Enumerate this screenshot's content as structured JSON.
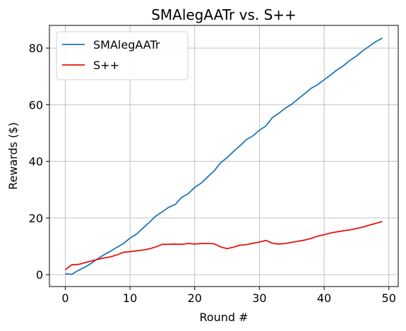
{
  "chart_data": {
    "type": "line",
    "title": "SMAlegAATr vs. S++",
    "xlabel": "Round #",
    "ylabel": "Rewards ($)",
    "xlim": [
      -2.45,
      51.45
    ],
    "ylim": [
      -4.2,
      88.0
    ],
    "xticks": [
      0,
      10,
      20,
      30,
      40,
      50
    ],
    "yticks": [
      0,
      20,
      40,
      60,
      80
    ],
    "grid": true,
    "legend_position": "top-left",
    "x": [
      0,
      1,
      2,
      3,
      4,
      5,
      6,
      7,
      8,
      9,
      10,
      11,
      12,
      13,
      14,
      15,
      16,
      17,
      18,
      19,
      20,
      21,
      22,
      23,
      24,
      25,
      26,
      27,
      28,
      29,
      30,
      31,
      32,
      33,
      34,
      35,
      36,
      37,
      38,
      39,
      40,
      41,
      42,
      43,
      44,
      45,
      46,
      47,
      48,
      49
    ],
    "series": [
      {
        "name": "SMAlegAATr",
        "color": "#1f77b4",
        "values": [
          0.3,
          0.1,
          1.5,
          2.6,
          4.0,
          5.6,
          7.0,
          8.3,
          9.7,
          11.0,
          12.9,
          14.3,
          16.4,
          18.5,
          20.7,
          22.2,
          23.8,
          24.8,
          27.3,
          28.6,
          30.8,
          32.3,
          34.5,
          36.6,
          39.5,
          41.3,
          43.5,
          45.5,
          47.7,
          49.0,
          51.0,
          52.5,
          55.4,
          57.0,
          58.8,
          60.2,
          62.1,
          63.9,
          65.8,
          67.1,
          68.8,
          70.5,
          72.3,
          73.8,
          75.7,
          77.2,
          79.1,
          80.7,
          82.3,
          83.5
        ]
      },
      {
        "name": "S++",
        "color": "#e8120d",
        "values": [
          1.7,
          3.5,
          3.6,
          4.2,
          4.8,
          5.4,
          5.9,
          6.3,
          7.0,
          7.9,
          8.1,
          8.4,
          8.7,
          9.1,
          9.8,
          10.7,
          10.7,
          10.8,
          10.7,
          11.0,
          10.8,
          11.0,
          11.0,
          10.9,
          9.8,
          9.2,
          9.7,
          10.4,
          10.6,
          11.1,
          11.5,
          12.1,
          11.1,
          10.8,
          11.0,
          11.4,
          11.8,
          12.2,
          12.8,
          13.6,
          14.1,
          14.7,
          15.1,
          15.5,
          15.8,
          16.3,
          16.8,
          17.5,
          18.1,
          18.8
        ]
      }
    ]
  }
}
